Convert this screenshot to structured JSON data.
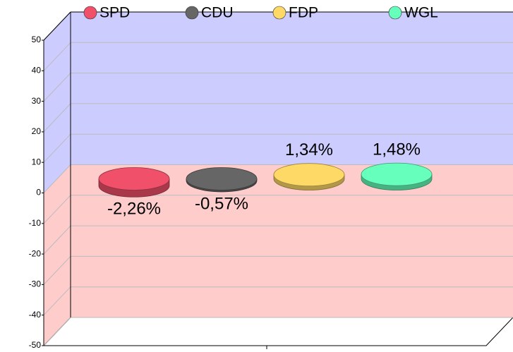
{
  "chart_data": {
    "type": "bar",
    "series": [
      {
        "name": "SPD",
        "color": "#f0506a",
        "values": [
          -2.26
        ],
        "value_labels": [
          "-2,26%"
        ]
      },
      {
        "name": "CDU",
        "color": "#666666",
        "values": [
          -0.57
        ],
        "value_labels": [
          "-0,57%"
        ]
      },
      {
        "name": "FDP",
        "color": "#ffd966",
        "values": [
          1.34
        ],
        "value_labels": [
          "1,34%"
        ]
      },
      {
        "name": "WGL",
        "color": "#66ffbb",
        "values": [
          1.48
        ],
        "value_labels": [
          "1,48%"
        ]
      }
    ],
    "ylim": [
      -50,
      50
    ],
    "yticks": [
      -50,
      -40,
      -30,
      -20,
      -10,
      0,
      10,
      20,
      30,
      40,
      50
    ],
    "grid": true
  }
}
